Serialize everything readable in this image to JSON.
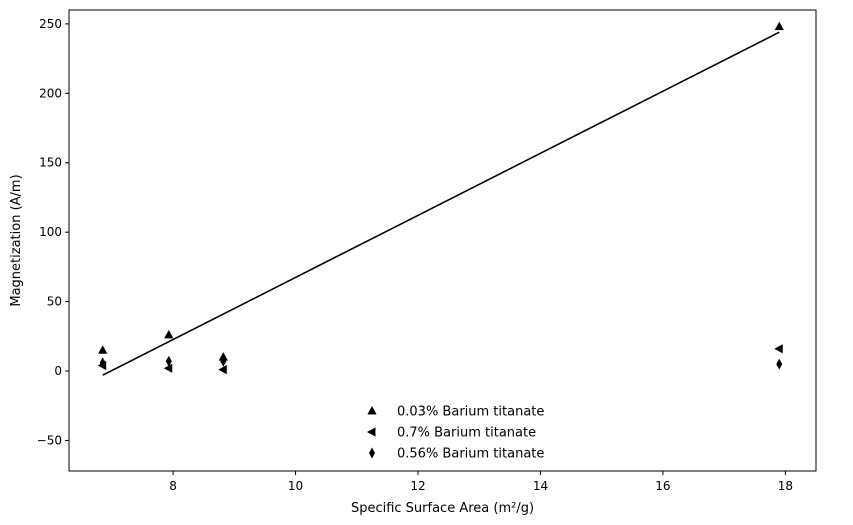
{
  "chart_data": {
    "type": "scatter",
    "title": "",
    "xlabel": "Specific Surface Area (m²/g)",
    "ylabel": "Magnetization (A/m)",
    "xlim": [
      6.3,
      18.5
    ],
    "ylim": [
      -72,
      260
    ],
    "x_ticks": [
      8,
      10,
      12,
      14,
      16,
      18
    ],
    "x_tick_labels": [
      "8",
      "10",
      "12",
      "14",
      "16",
      "18"
    ],
    "y_ticks": [
      -50,
      0,
      50,
      100,
      150,
      200,
      250
    ],
    "y_tick_labels": [
      "−50",
      "0",
      "50",
      "100",
      "150",
      "200",
      "250"
    ],
    "grid": false,
    "legend_position": "bottom-center",
    "series": [
      {
        "name": "0.03% Barium titanate",
        "marker": "triangle-up",
        "color": "#000000",
        "x": [
          6.85,
          7.93,
          8.82,
          17.9
        ],
        "y": [
          15,
          26,
          10,
          248
        ]
      },
      {
        "name": "0.7% Barium titanate",
        "marker": "triangle-left",
        "color": "#000000",
        "x": [
          6.85,
          7.93,
          8.82,
          17.9
        ],
        "y": [
          4,
          2,
          1,
          16
        ]
      },
      {
        "name": "0.56% Barium titanate",
        "marker": "thin-diamond",
        "color": "#000000",
        "x": [
          6.85,
          7.93,
          8.82,
          17.9
        ],
        "y": [
          6,
          7,
          7,
          5
        ]
      }
    ],
    "fit_line": {
      "color": "#000000",
      "x": [
        6.85,
        17.9
      ],
      "y": [
        -3,
        244
      ]
    }
  }
}
